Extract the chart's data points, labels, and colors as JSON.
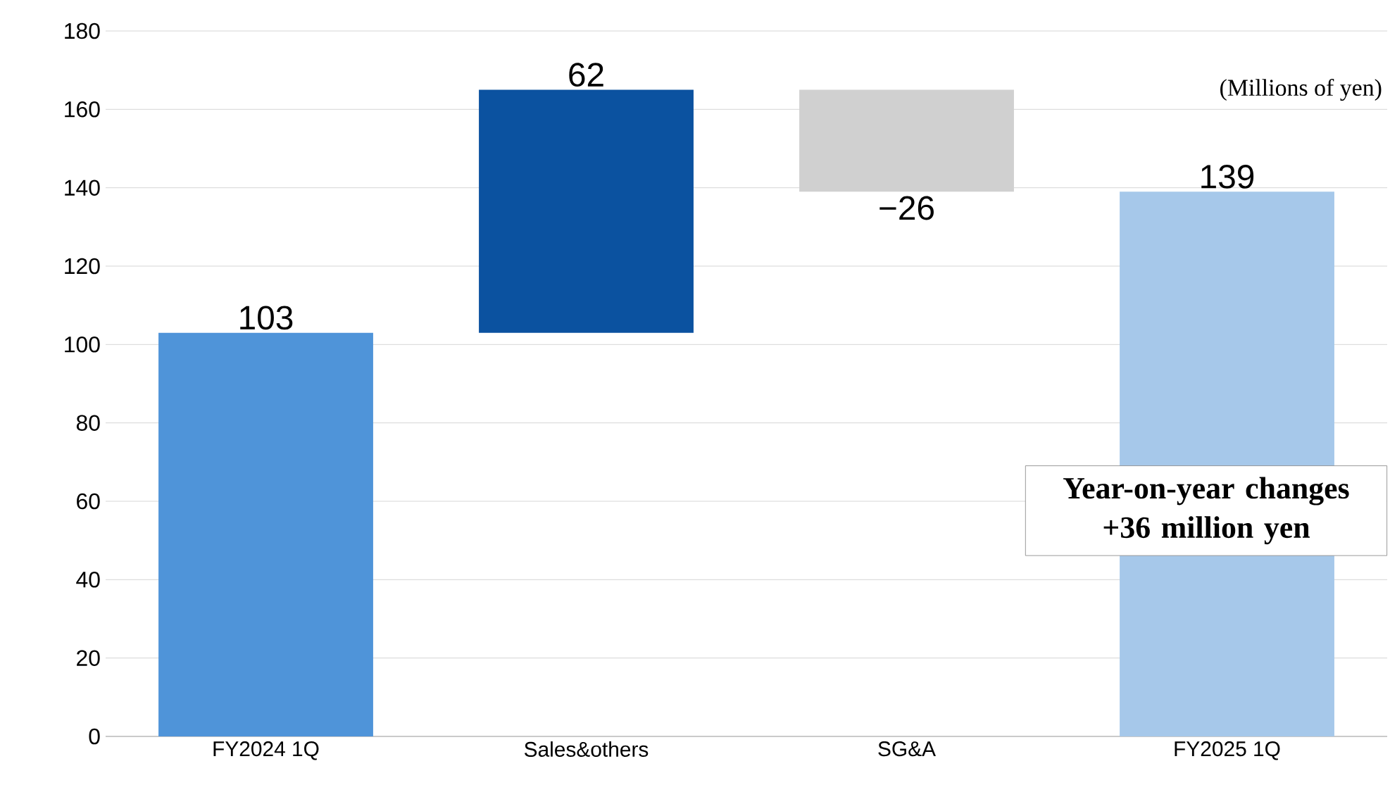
{
  "chart_data": {
    "type": "bar",
    "categories": [
      "FY2024 1Q",
      "Sales&others",
      "SG&A",
      "FY2025 1Q"
    ],
    "values": [
      103,
      62,
      -26,
      139
    ],
    "base": [
      0,
      103,
      165,
      0
    ],
    "colors": [
      "#4f94d9",
      "#0b52a0",
      "#d0d0d0",
      "#a6c8ea"
    ],
    "value_labels": [
      "103",
      "62",
      "−26",
      "139"
    ],
    "ylim": [
      0,
      180
    ],
    "yticks": [
      0,
      20,
      40,
      60,
      80,
      100,
      120,
      140,
      160,
      180
    ],
    "grid": "y",
    "annotations": [
      "(Millions of yen)",
      "Year-on-year changes +36 million yen"
    ]
  }
}
